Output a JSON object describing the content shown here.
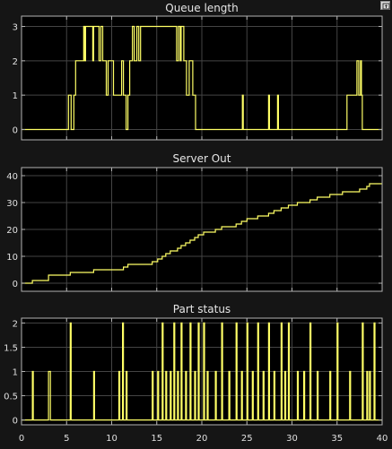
{
  "window": {
    "restore_icon": "undock-icon"
  },
  "style": {
    "background": "#151515",
    "plot_background": "#000000",
    "grid_color": "#444444",
    "axes_color": "#b3b3b3",
    "trace_color": "#ffff66"
  },
  "chart_data": [
    {
      "type": "line",
      "step": true,
      "title": "Queue length",
      "xlabel": "",
      "ylabel": "",
      "xlim": [
        0,
        40
      ],
      "ylim": [
        -0.3,
        3.3
      ],
      "xticks": [
        0,
        5,
        10,
        15,
        20,
        25,
        30,
        35,
        40
      ],
      "yticks": [
        0,
        1,
        2,
        3
      ],
      "ytick_labels": [
        "0",
        "1",
        "2",
        "3"
      ],
      "show_xtick_labels": false,
      "grid": true,
      "x": [
        0,
        5.2,
        5.5,
        5.8,
        6.0,
        6.9,
        7.0,
        7.1,
        7.9,
        8.0,
        8.6,
        8.8,
        9.0,
        9.4,
        9.6,
        10.2,
        11.1,
        11.3,
        11.6,
        11.8,
        12.0,
        12.3,
        12.5,
        12.8,
        13.0,
        13.2,
        17.2,
        17.4,
        17.6,
        17.7,
        18.0,
        18.3,
        18.6,
        19.0,
        19.3,
        19.6,
        24.5,
        24.6,
        27.4,
        27.5,
        28.4,
        28.5,
        36.1,
        37.2,
        37.4,
        37.6,
        37.7,
        37.8,
        39.0,
        40
      ],
      "y": [
        0,
        1,
        0,
        1,
        2,
        3,
        2,
        3,
        2,
        3,
        2,
        3,
        2,
        1,
        2,
        1,
        2,
        1,
        0,
        1,
        2,
        3,
        2,
        3,
        2,
        3,
        2,
        3,
        2,
        3,
        2,
        1,
        2,
        1,
        0,
        0,
        1,
        0,
        1,
        0,
        1,
        0,
        1,
        2,
        1,
        2,
        1,
        0,
        0,
        0
      ]
    },
    {
      "type": "line",
      "step": true,
      "title": "Server Out",
      "xlabel": "",
      "ylabel": "",
      "xlim": [
        0,
        40
      ],
      "ylim": [
        -3,
        43
      ],
      "xticks": [
        0,
        5,
        10,
        15,
        20,
        25,
        30,
        35,
        40
      ],
      "yticks": [
        0,
        10,
        20,
        30,
        40
      ],
      "ytick_labels": [
        "0",
        "10",
        "20",
        "30",
        "40"
      ],
      "show_xtick_labels": false,
      "grid": true,
      "x": [
        0,
        1.2,
        3.0,
        5.4,
        6.6,
        8.0,
        11.1,
        11.3,
        11.8,
        14.5,
        15.1,
        15.6,
        16.0,
        16.5,
        16.9,
        17.3,
        17.7,
        18.2,
        18.7,
        19.2,
        19.6,
        19.9,
        20.2,
        20.6,
        21.5,
        22.2,
        23.0,
        23.8,
        24.4,
        25.0,
        25.6,
        26.2,
        26.8,
        27.4,
        28.0,
        28.4,
        28.8,
        29.2,
        29.6,
        30.0,
        30.6,
        31.3,
        32.0,
        32.8,
        33.5,
        34.2,
        35.0,
        35.6,
        36.4,
        37.5,
        38.0,
        38.3,
        38.6,
        39.1,
        40
      ],
      "y": [
        0,
        1,
        3,
        4,
        4,
        5,
        5,
        6,
        7,
        8,
        9,
        10,
        11,
        12,
        12,
        13,
        14,
        15,
        16,
        17,
        18,
        18,
        19,
        19,
        20,
        21,
        21,
        22,
        23,
        24,
        24,
        25,
        25,
        26,
        27,
        27,
        28,
        28,
        29,
        29,
        30,
        30,
        31,
        32,
        32,
        33,
        33,
        34,
        34,
        35,
        35,
        36,
        37,
        37,
        37
      ]
    },
    {
      "type": "line",
      "step": true,
      "title": "Part status",
      "xlabel": "",
      "ylabel": "",
      "xlim": [
        0,
        40
      ],
      "ylim": [
        -0.1,
        2.1
      ],
      "xticks": [
        0,
        5,
        10,
        15,
        20,
        25,
        30,
        35,
        40
      ],
      "xtick_labels": [
        "0",
        "5",
        "10",
        "15",
        "20",
        "25",
        "30",
        "35",
        "40"
      ],
      "yticks": [
        0,
        0.5,
        1,
        1.5,
        2
      ],
      "ytick_labels": [
        "0",
        "0.5",
        "1",
        "1.5",
        "2"
      ],
      "show_xtick_labels": true,
      "grid": true,
      "x": [
        0,
        1.2,
        1.3,
        3.0,
        3.2,
        5.4,
        5.5,
        8.0,
        8.1,
        10.8,
        10.9,
        11.2,
        11.3,
        11.6,
        11.7,
        14.5,
        14.6,
        15.1,
        15.2,
        15.6,
        15.7,
        16.0,
        16.1,
        16.5,
        16.6,
        16.9,
        17.0,
        17.3,
        17.4,
        17.7,
        17.8,
        18.2,
        18.3,
        18.7,
        18.8,
        19.2,
        19.3,
        19.6,
        19.7,
        20.2,
        20.3,
        20.6,
        20.7,
        21.5,
        21.6,
        22.2,
        22.3,
        23.0,
        23.1,
        23.8,
        23.9,
        24.4,
        24.5,
        25.0,
        25.1,
        25.6,
        25.7,
        26.2,
        26.3,
        26.8,
        26.9,
        27.4,
        27.5,
        28.0,
        28.1,
        28.8,
        28.9,
        29.2,
        29.3,
        29.6,
        29.7,
        30.6,
        30.7,
        31.3,
        31.4,
        32.0,
        32.1,
        32.8,
        32.9,
        34.2,
        34.3,
        35.0,
        35.1,
        36.4,
        36.5,
        37.8,
        37.9,
        38.3,
        38.4,
        38.6,
        38.7,
        39.1,
        39.2,
        40
      ],
      "y": [
        0,
        1,
        0,
        1,
        0,
        2,
        0,
        1,
        0,
        1,
        0,
        2,
        0,
        1,
        0,
        1,
        0,
        1,
        0,
        2,
        0,
        1,
        0,
        1,
        0,
        2,
        0,
        1,
        0,
        2,
        0,
        1,
        0,
        2,
        0,
        1,
        0,
        2,
        0,
        2,
        0,
        1,
        0,
        1,
        0,
        2,
        0,
        1,
        0,
        2,
        0,
        1,
        0,
        2,
        0,
        1,
        0,
        2,
        0,
        1,
        0,
        2,
        0,
        1,
        0,
        2,
        0,
        1,
        0,
        2,
        0,
        1,
        0,
        1,
        0,
        2,
        0,
        1,
        0,
        1,
        0,
        2,
        0,
        1,
        0,
        2,
        0,
        1,
        0,
        1,
        0,
        2,
        0,
        0
      ]
    }
  ]
}
